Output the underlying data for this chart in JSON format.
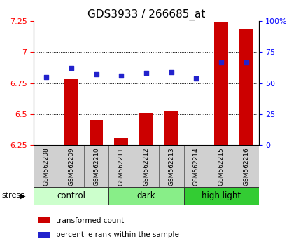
{
  "title": "GDS3933 / 266685_at",
  "samples": [
    "GSM562208",
    "GSM562209",
    "GSM562210",
    "GSM562211",
    "GSM562212",
    "GSM562213",
    "GSM562214",
    "GSM562215",
    "GSM562216"
  ],
  "transformed_count": [
    6.252,
    6.78,
    6.455,
    6.305,
    6.505,
    6.525,
    6.252,
    7.24,
    7.18
  ],
  "percentile_rank": [
    55,
    62,
    57,
    56,
    58,
    59,
    54,
    67,
    67
  ],
  "ylim_left": [
    6.25,
    7.25
  ],
  "yticks_left": [
    6.25,
    6.5,
    6.75,
    7.0,
    7.25
  ],
  "ytick_left_labels": [
    "6.25",
    "6.5",
    "6.75",
    "7",
    "7.25"
  ],
  "ylim_right": [
    0,
    100
  ],
  "yticks_right": [
    0,
    25,
    50,
    75,
    100
  ],
  "ytick_right_labels": [
    "0",
    "25",
    "50",
    "75",
    "100%"
  ],
  "bar_color": "#cc0000",
  "dot_color": "#2222cc",
  "groups": [
    {
      "label": "control",
      "start": 0,
      "end": 3,
      "color": "#ccffcc"
    },
    {
      "label": "dark",
      "start": 3,
      "end": 6,
      "color": "#88ee88"
    },
    {
      "label": "high light",
      "start": 6,
      "end": 9,
      "color": "#33cc33"
    }
  ],
  "stress_label": "stress",
  "legend_items": [
    {
      "color": "#cc0000",
      "label": "transformed count"
    },
    {
      "color": "#2222cc",
      "label": "percentile rank within the sample"
    }
  ],
  "grid_yticks": [
    6.5,
    6.75,
    7.0
  ],
  "title_fontsize": 11,
  "tick_fontsize": 8,
  "label_fontsize": 8.5,
  "bar_width": 0.55,
  "sample_box_color": "#d0d0d0"
}
